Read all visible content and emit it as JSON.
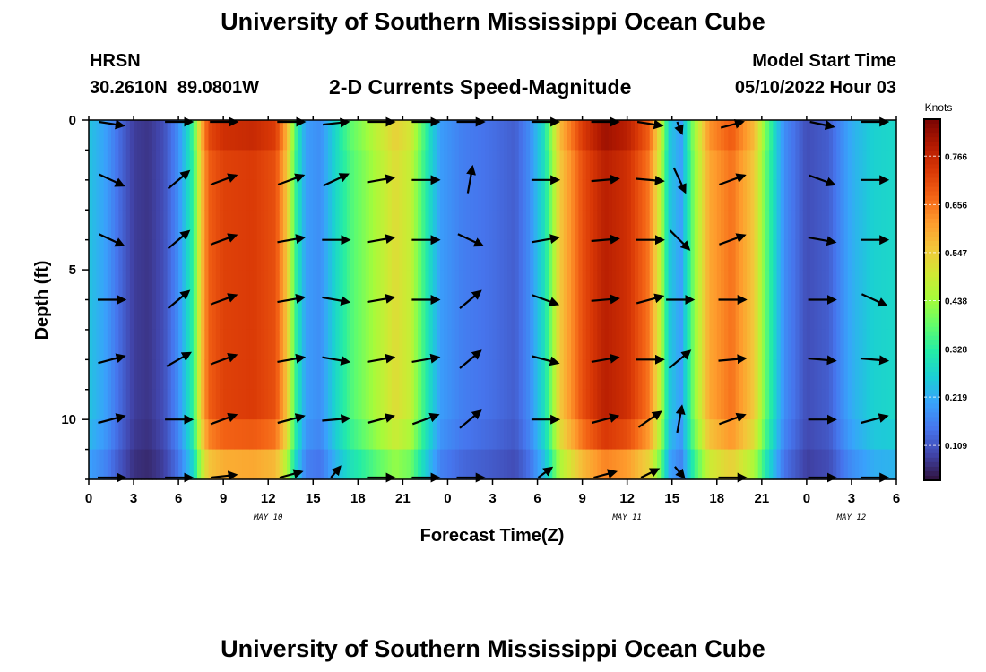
{
  "header": {
    "title": "University of Southern Mississippi Ocean Cube",
    "station": "HRSN",
    "coords": "30.2610N  89.0801W",
    "subtitle": "2-D Currents Speed-Magnitude",
    "model_label": "Model Start Time",
    "model_time": "05/10/2022 Hour 03"
  },
  "footer": {
    "title": "University of Southern Mississippi Ocean Cube"
  },
  "chart_data": {
    "type": "heatmap",
    "title": "2-D Currents Speed-Magnitude",
    "xlabel": "Forecast Time(Z)",
    "ylabel": "Depth (ft)",
    "x_ticks": [
      "0",
      "3",
      "6",
      "9",
      "12",
      "15",
      "18",
      "21",
      "0",
      "3",
      "6",
      "9",
      "12",
      "15",
      "18",
      "21",
      "0",
      "3",
      "6"
    ],
    "x_range_hours": [
      0,
      54
    ],
    "date_labels": [
      {
        "hour": 12,
        "text": "MAY 10"
      },
      {
        "hour": 36,
        "text": "MAY 11"
      },
      {
        "hour": 51,
        "text": "MAY 12"
      }
    ],
    "y_ticks": [
      "0",
      "5",
      "10"
    ],
    "y_range_ft": [
      0,
      12
    ],
    "colorbar": {
      "unit": "Knots",
      "ticks": [
        "0.766",
        "0.656",
        "0.547",
        "0.438",
        "0.328",
        "0.219",
        "0.109"
      ],
      "tick_values": [
        0.766,
        0.656,
        0.547,
        0.438,
        0.328,
        0.219,
        0.109
      ],
      "range": [
        0.03,
        0.85
      ],
      "colors": [
        "#30123b",
        "#4145ab",
        "#4675ed",
        "#39a2fc",
        "#1bcfd4",
        "#24eca6",
        "#61fc6c",
        "#a4fc3b",
        "#d1e834",
        "#f3c63a",
        "#fe9b2d",
        "#f36315",
        "#d93806",
        "#b11901",
        "#7a0403"
      ]
    },
    "speed_by_hour": [
      [
        0.0,
        0.25
      ],
      [
        1.0,
        0.21
      ],
      [
        2.0,
        0.14
      ],
      [
        3.0,
        0.08
      ],
      [
        4.0,
        0.07
      ],
      [
        5.0,
        0.1
      ],
      [
        6.0,
        0.18
      ],
      [
        7.0,
        0.34
      ],
      [
        7.5,
        0.55
      ],
      [
        8.0,
        0.68
      ],
      [
        9.0,
        0.72
      ],
      [
        11.0,
        0.73
      ],
      [
        12.5,
        0.7
      ],
      [
        13.3,
        0.55
      ],
      [
        13.8,
        0.35
      ],
      [
        14.5,
        0.2
      ],
      [
        15.5,
        0.18
      ],
      [
        16.5,
        0.28
      ],
      [
        17.5,
        0.36
      ],
      [
        19.0,
        0.44
      ],
      [
        20.5,
        0.52
      ],
      [
        21.5,
        0.48
      ],
      [
        22.5,
        0.33
      ],
      [
        23.5,
        0.2
      ],
      [
        25.0,
        0.16
      ],
      [
        27.0,
        0.14
      ],
      [
        28.5,
        0.12
      ],
      [
        29.5,
        0.18
      ],
      [
        30.5,
        0.3
      ],
      [
        31.5,
        0.55
      ],
      [
        33.0,
        0.7
      ],
      [
        34.5,
        0.78
      ],
      [
        36.0,
        0.75
      ],
      [
        37.5,
        0.65
      ],
      [
        38.2,
        0.48
      ],
      [
        38.8,
        0.26
      ],
      [
        39.6,
        0.2
      ],
      [
        40.5,
        0.42
      ],
      [
        41.5,
        0.6
      ],
      [
        43.0,
        0.66
      ],
      [
        44.5,
        0.55
      ],
      [
        45.5,
        0.34
      ],
      [
        46.5,
        0.18
      ],
      [
        48.0,
        0.1
      ],
      [
        49.5,
        0.12
      ],
      [
        51.0,
        0.22
      ],
      [
        52.5,
        0.27
      ],
      [
        54.0,
        0.28
      ]
    ],
    "depths_ft": [
      0,
      2,
      4,
      6,
      8,
      10,
      12
    ],
    "vectors": [
      {
        "hour": 1.5,
        "angle": [
          25,
          25,
          25,
          0,
          -15,
          -15,
          0
        ]
      },
      {
        "hour": 6.0,
        "angle": [
          0,
          -40,
          -40,
          -40,
          -30,
          0,
          0
        ]
      },
      {
        "hour": 9.0,
        "angle": [
          0,
          -20,
          -20,
          -20,
          -20,
          -20,
          -20
        ]
      },
      {
        "hour": 13.5,
        "angle": [
          0,
          -20,
          -10,
          -10,
          -10,
          -15,
          -35
        ]
      },
      {
        "hour": 16.5,
        "angle": [
          -20,
          -25,
          0,
          10,
          10,
          -5,
          -70
        ]
      },
      {
        "hour": 19.5,
        "angle": [
          -5,
          -10,
          -10,
          -10,
          -10,
          -15,
          0
        ]
      },
      {
        "hour": 22.5,
        "angle": [
          0,
          0,
          0,
          0,
          -10,
          -20,
          0
        ]
      },
      {
        "hour": 25.5,
        "angle": [
          0,
          -80,
          25,
          -40,
          -40,
          -40,
          0
        ]
      },
      {
        "hour": 30.5,
        "angle": [
          0,
          0,
          -10,
          20,
          15,
          0,
          -60
        ]
      },
      {
        "hour": 34.5,
        "angle": [
          0,
          -5,
          -5,
          -5,
          -10,
          -15,
          -35
        ]
      },
      {
        "hour": 37.5,
        "angle": [
          25,
          5,
          0,
          -15,
          0,
          -35,
          -50
        ]
      },
      {
        "hour": 39.5,
        "angle": [
          80,
          65,
          45,
          0,
          -40,
          -80,
          70
        ]
      },
      {
        "hour": 43.0,
        "angle": [
          -35,
          -20,
          -20,
          0,
          -5,
          -20,
          0
        ]
      },
      {
        "hour": 49.0,
        "angle": [
          30,
          20,
          10,
          0,
          5,
          0,
          0
        ]
      },
      {
        "hour": 52.5,
        "angle": [
          0,
          0,
          0,
          25,
          5,
          -15,
          0
        ]
      }
    ]
  }
}
